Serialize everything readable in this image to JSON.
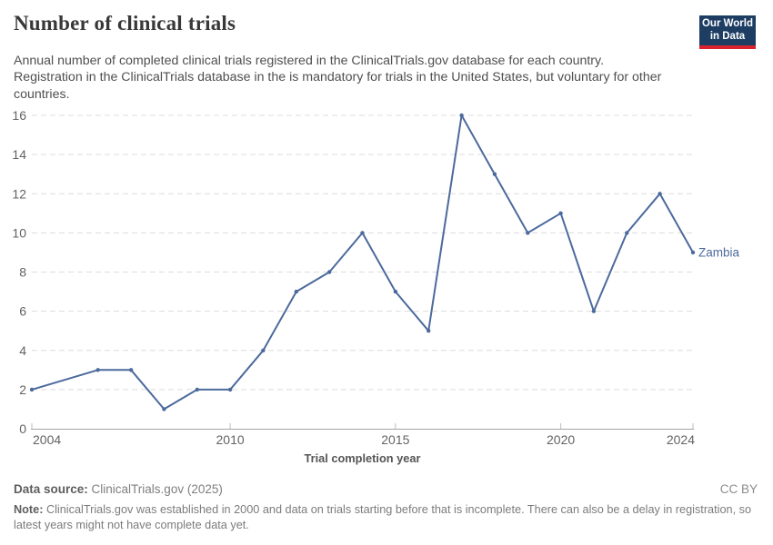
{
  "header": {
    "title": "Number of clinical trials",
    "subtitle": "Annual number of completed clinical trials registered in the ClinicalTrials.gov database for each country. Registration in the ClinicalTrials database in the is mandatory for trials in the United States, but voluntary for other countries.",
    "logo": {
      "line1": "Our World",
      "line2": "in Data",
      "bg_color": "#1d3d63",
      "accent_color": "#d8232f"
    }
  },
  "chart_data": {
    "type": "line",
    "title": "Number of clinical trials",
    "xlabel": "Trial completion year",
    "ylabel": "",
    "xlim": [
      2004,
      2024
    ],
    "ylim": [
      0,
      16
    ],
    "x_ticks": [
      2004,
      2010,
      2015,
      2020,
      2024
    ],
    "y_ticks": [
      0,
      2,
      4,
      6,
      8,
      10,
      12,
      14,
      16
    ],
    "grid": "dashed-horizontal",
    "legend_position": "end-of-line-label",
    "grid_color": "#dcdcdc",
    "axis_color": "#a5a5a5",
    "tick_label_color": "#636363",
    "series": [
      {
        "name": "Zambia",
        "color": "#4c6a9c",
        "points": [
          [
            2004,
            2
          ],
          [
            2006,
            3
          ],
          [
            2007,
            3
          ],
          [
            2008,
            1
          ],
          [
            2009,
            2
          ],
          [
            2010,
            2
          ],
          [
            2011,
            4
          ],
          [
            2012,
            7
          ],
          [
            2013,
            8
          ],
          [
            2014,
            10
          ],
          [
            2015,
            7
          ],
          [
            2016,
            5
          ],
          [
            2017,
            16
          ],
          [
            2018,
            13
          ],
          [
            2019,
            10
          ],
          [
            2020,
            11
          ],
          [
            2021,
            6
          ],
          [
            2022,
            10
          ],
          [
            2023,
            12
          ],
          [
            2024,
            9
          ]
        ]
      }
    ]
  },
  "footer": {
    "data_source_label": "Data source:",
    "data_source_value": "ClinicalTrials.gov (2025)",
    "license": "CC BY",
    "note_label": "Note:",
    "note_text": "ClinicalTrials.gov was established in 2000 and data on trials starting before that is incomplete. There can also be a delay in registration, so latest years might not have complete data yet."
  }
}
